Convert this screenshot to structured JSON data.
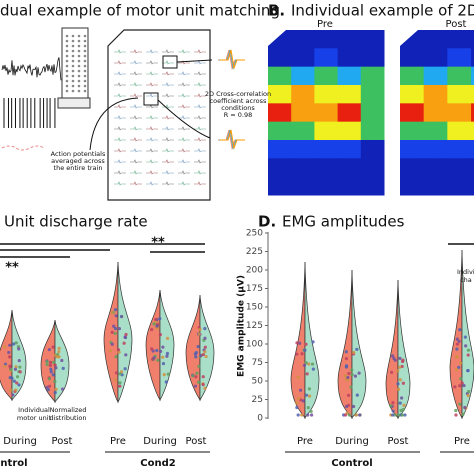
{
  "panel_a": {
    "title": "dual example of motor unit matching",
    "correlation_note": [
      "2D Cross-correlation",
      "coefficient across",
      "conditions",
      "R = 0.98"
    ],
    "ap_note": [
      "Action potentials",
      "averaged across",
      "the entire train"
    ]
  },
  "panel_b": {
    "letter": "B.",
    "title": "Individual example of 2D E",
    "labels": [
      "Pre",
      "Post"
    ]
  },
  "panel_c": {
    "title": "Unit discharge rate",
    "significance": [
      "**",
      "**"
    ],
    "annotations": [
      "Individual",
      "motor unit",
      "Normalized",
      "distribution"
    ],
    "x_labels": [
      "During",
      "Post",
      "Pre",
      "During",
      "Post"
    ],
    "groups": [
      "ntrol",
      "Cond2"
    ]
  },
  "panel_d": {
    "letter": "D.",
    "title": "EMG amplitudes",
    "y_label": "EMG amplitude (µV)",
    "y_ticks": [
      "0",
      "25",
      "50",
      "75",
      "100",
      "125",
      "150",
      "175",
      "200",
      "225",
      "250"
    ],
    "x_labels": [
      "Pre",
      "During",
      "Post",
      "Pre"
    ],
    "groups": [
      "Control"
    ],
    "annotation": [
      "Indivi",
      "cha"
    ]
  }
}
